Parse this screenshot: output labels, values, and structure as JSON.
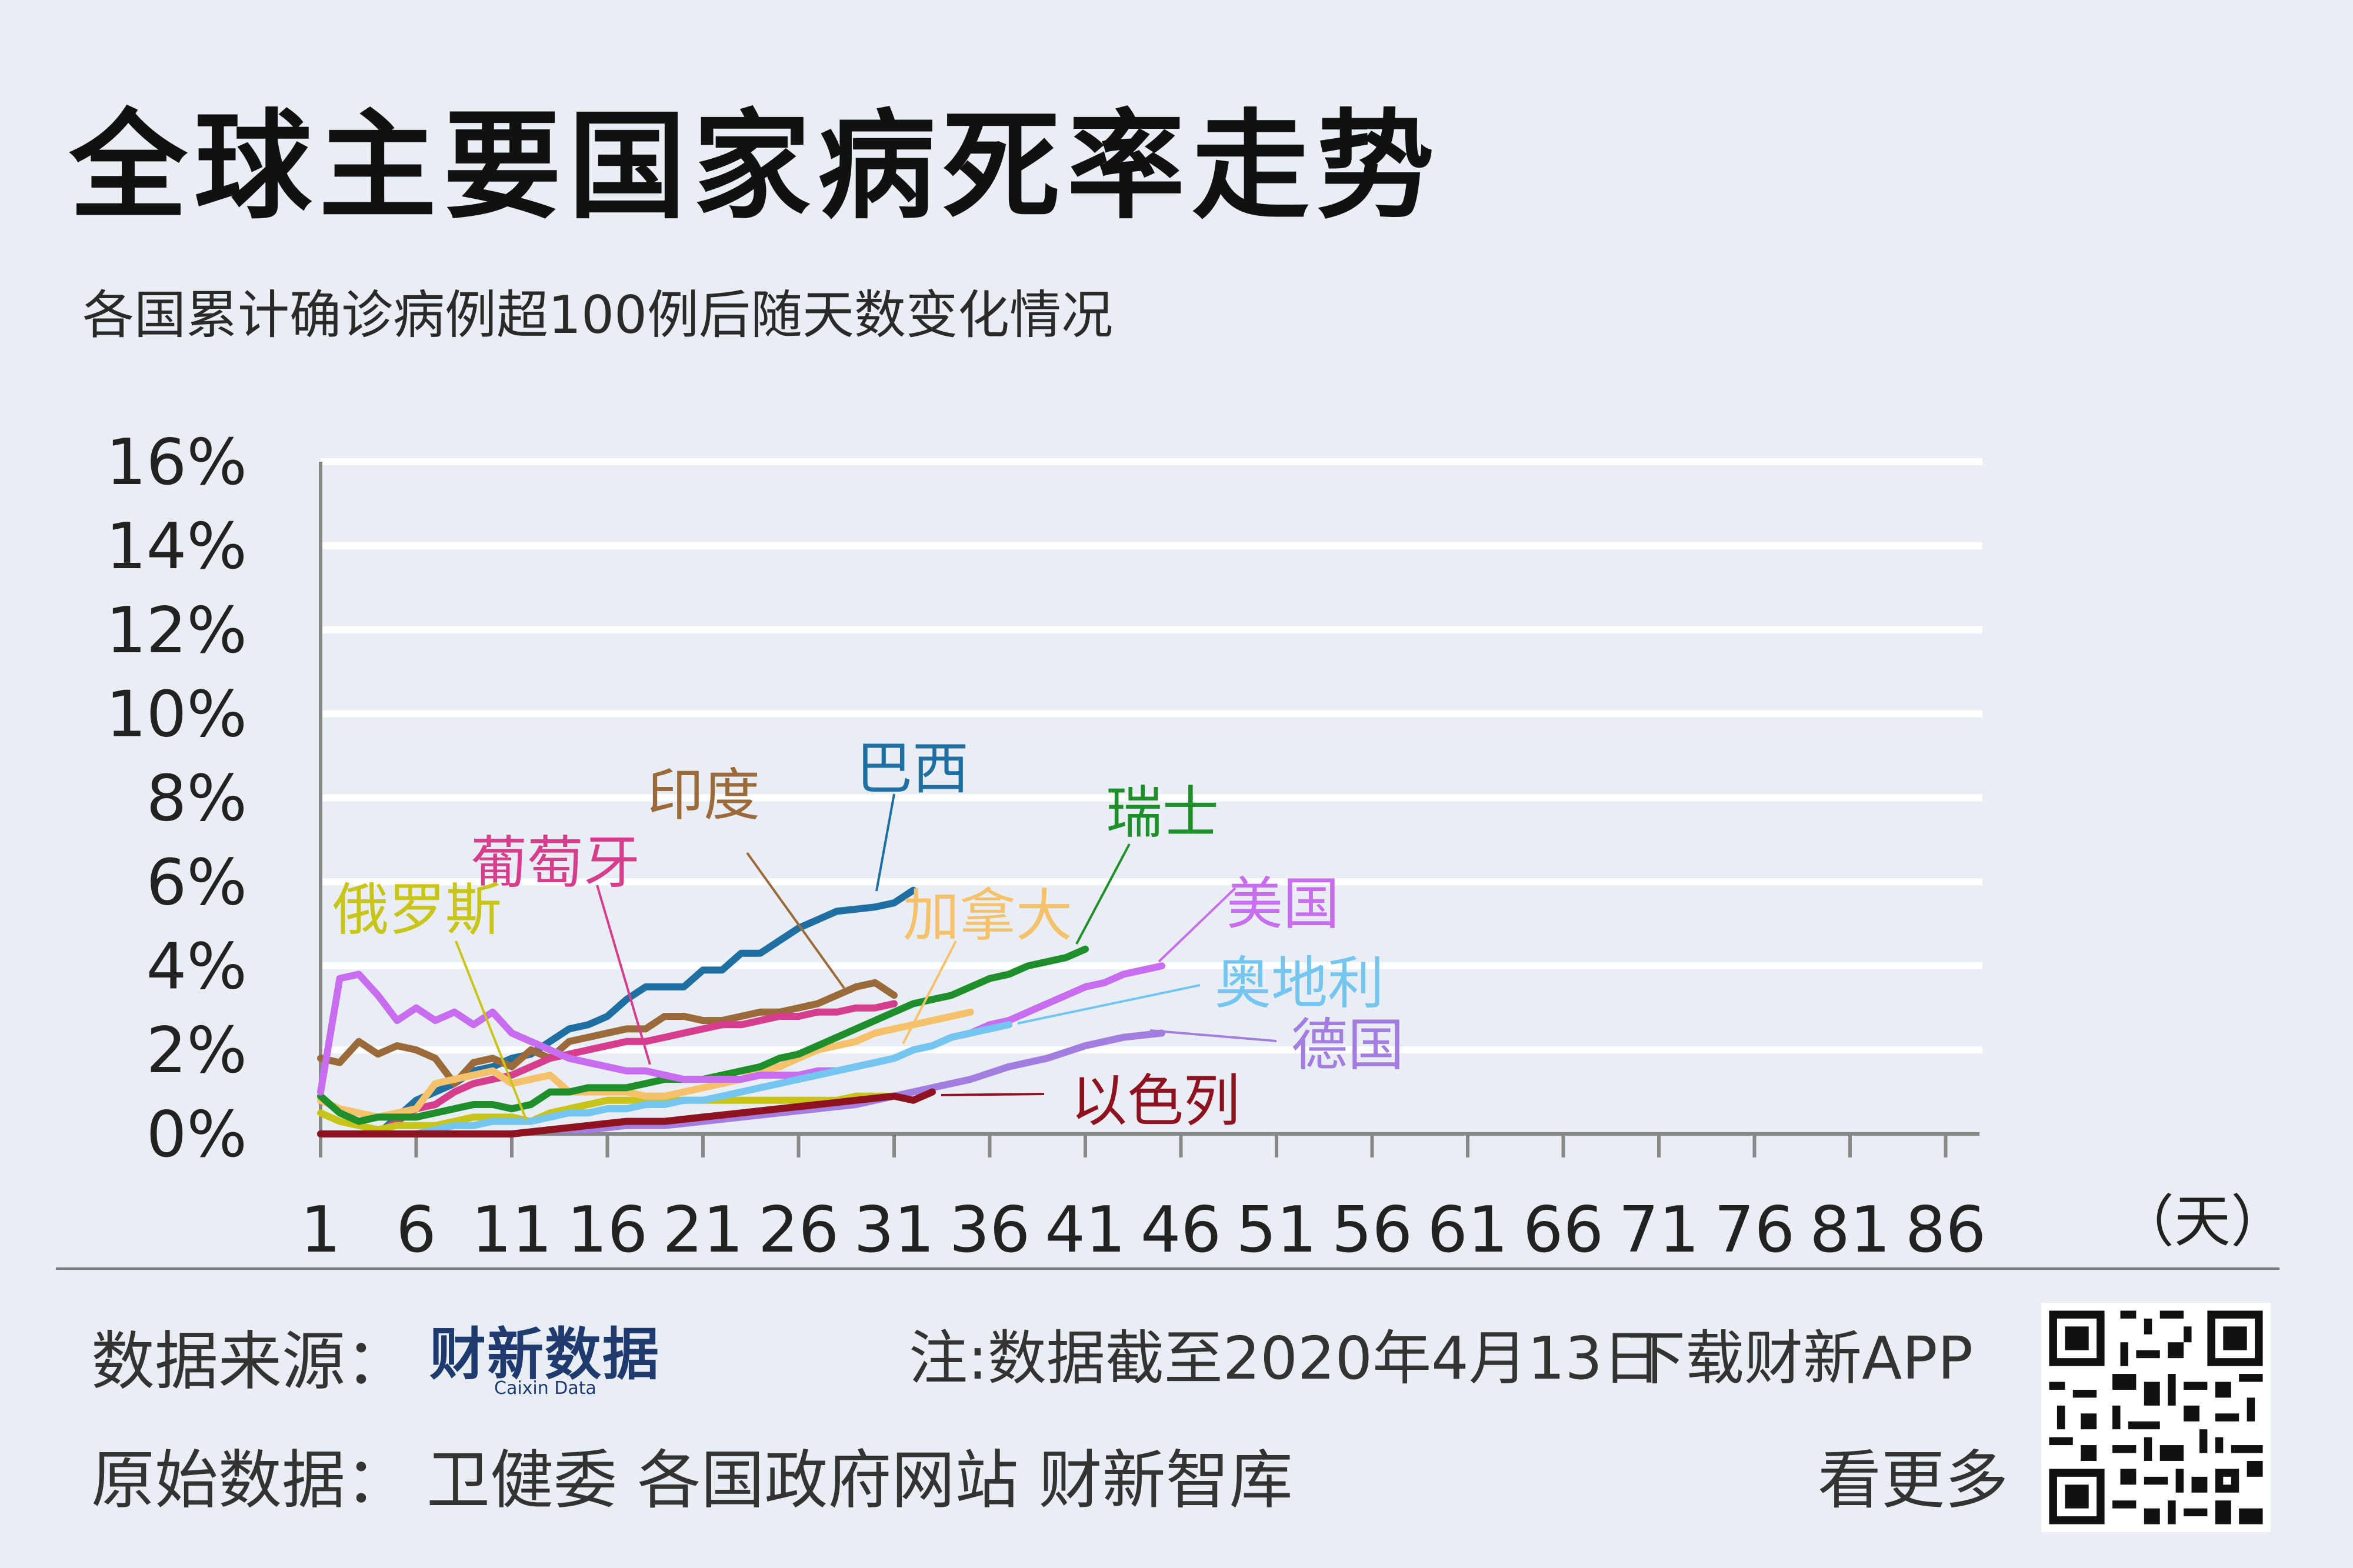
{
  "title": "全球主要国家病死率走势",
  "subtitle": "各国累计确诊病例超100例后随天数变化情况",
  "footer": {
    "source_label": "数据来源：",
    "logo_text": "财新数据",
    "logo_sub": "Caixin Data",
    "note": "注:数据截至2020年4月13日",
    "download": "下载财新APP",
    "more": "看更多",
    "raw_label": "原始数据：",
    "raw_sources": "卫健委  各国政府网站  财新智库"
  },
  "chart_data": {
    "type": "line",
    "title": "全球主要国家病死率走势",
    "subtitle": "各国累计确诊病例超100例后随天数变化情况",
    "xlabel": "（天）",
    "ylabel": "",
    "xlim": [
      1,
      87
    ],
    "ylim": [
      0,
      16
    ],
    "x_ticks": [
      1,
      6,
      11,
      16,
      21,
      26,
      31,
      36,
      41,
      46,
      51,
      56,
      61,
      66,
      71,
      76,
      81,
      86
    ],
    "y_ticks": [
      "0%",
      "2%",
      "4%",
      "6%",
      "8%",
      "10%",
      "12%",
      "14%",
      "16%"
    ],
    "grid": true,
    "series": [
      {
        "name": "巴西",
        "color": "#1f6fa3",
        "x": [
          2,
          3,
          4,
          5,
          6,
          7,
          8,
          9,
          10,
          11,
          12,
          13,
          14,
          15,
          16,
          17,
          18,
          19,
          20,
          21,
          22,
          23,
          24,
          25,
          26,
          27,
          28,
          29,
          30,
          31,
          32
        ],
        "y": [
          0,
          0,
          0,
          0.4,
          0.8,
          1.0,
          1.2,
          1.5,
          1.6,
          1.8,
          1.9,
          2.2,
          2.5,
          2.6,
          2.8,
          3.2,
          3.5,
          3.5,
          3.5,
          3.9,
          3.9,
          4.3,
          4.3,
          4.6,
          4.9,
          5.1,
          5.3,
          5.35,
          5.4,
          5.5,
          5.8
        ]
      },
      {
        "name": "印度",
        "color": "#9b6a3a",
        "x": [
          1,
          2,
          3,
          4,
          5,
          6,
          7,
          8,
          9,
          10,
          11,
          12,
          13,
          14,
          15,
          16,
          17,
          18,
          19,
          20,
          21,
          22,
          23,
          24,
          25,
          26,
          27,
          28,
          29,
          30,
          31
        ],
        "y": [
          1.8,
          1.7,
          2.2,
          1.9,
          2.1,
          2.0,
          1.8,
          1.2,
          1.7,
          1.8,
          1.6,
          2.0,
          1.8,
          2.2,
          2.3,
          2.4,
          2.5,
          2.5,
          2.8,
          2.8,
          2.7,
          2.7,
          2.8,
          2.9,
          2.9,
          3.0,
          3.1,
          3.3,
          3.5,
          3.6,
          3.3
        ]
      },
      {
        "name": "葡萄牙",
        "color": "#d63d8c",
        "x": [
          1,
          2,
          3,
          4,
          5,
          6,
          7,
          8,
          9,
          10,
          11,
          12,
          13,
          14,
          15,
          16,
          17,
          18,
          19,
          20,
          21,
          22,
          23,
          24,
          25,
          26,
          27,
          28,
          29,
          30,
          31
        ],
        "y": [
          0,
          0,
          0,
          0,
          0.3,
          0.6,
          0.7,
          1.0,
          1.2,
          1.3,
          1.4,
          1.6,
          1.8,
          1.9,
          2.0,
          2.1,
          2.2,
          2.2,
          2.3,
          2.4,
          2.5,
          2.6,
          2.6,
          2.7,
          2.8,
          2.8,
          2.9,
          2.9,
          3.0,
          3.0,
          3.1
        ]
      },
      {
        "name": "俄罗斯",
        "color": "#c9c41a",
        "x": [
          1,
          2,
          3,
          4,
          5,
          6,
          7,
          8,
          9,
          10,
          11,
          12,
          13,
          14,
          15,
          16,
          17,
          18,
          19,
          20,
          21,
          22,
          23,
          24,
          25,
          26,
          27,
          28,
          29,
          30,
          31
        ],
        "y": [
          0.5,
          0.3,
          0.2,
          0.1,
          0.2,
          0.2,
          0.2,
          0.3,
          0.4,
          0.4,
          0.4,
          0.3,
          0.5,
          0.6,
          0.7,
          0.8,
          0.8,
          0.8,
          0.8,
          0.8,
          0.8,
          0.8,
          0.8,
          0.8,
          0.8,
          0.8,
          0.8,
          0.8,
          0.9,
          0.9,
          0.9
        ]
      },
      {
        "name": "加拿大",
        "color": "#f5c26b",
        "x": [
          1,
          2,
          3,
          4,
          5,
          6,
          7,
          8,
          9,
          10,
          11,
          12,
          13,
          14,
          15,
          16,
          17,
          18,
          19,
          20,
          21,
          22,
          23,
          24,
          25,
          26,
          27,
          28,
          29,
          30,
          31,
          32,
          33,
          34,
          35
        ],
        "y": [
          0.8,
          0.6,
          0.5,
          0.4,
          0.5,
          0.6,
          1.2,
          1.3,
          1.4,
          1.5,
          1.2,
          1.3,
          1.4,
          1.0,
          1.0,
          1.0,
          1.0,
          0.9,
          0.9,
          1.0,
          1.1,
          1.2,
          1.3,
          1.5,
          1.6,
          1.8,
          2.0,
          2.1,
          2.2,
          2.4,
          2.5,
          2.6,
          2.7,
          2.8,
          2.9
        ]
      },
      {
        "name": "瑞士",
        "color": "#1e8f2a",
        "x": [
          1,
          2,
          3,
          4,
          5,
          6,
          7,
          8,
          9,
          10,
          11,
          12,
          13,
          14,
          15,
          16,
          17,
          18,
          19,
          20,
          21,
          22,
          23,
          24,
          25,
          26,
          27,
          28,
          29,
          30,
          31,
          32,
          33,
          34,
          35,
          36,
          37,
          38,
          39,
          40,
          41
        ],
        "y": [
          0.9,
          0.5,
          0.3,
          0.4,
          0.4,
          0.4,
          0.5,
          0.6,
          0.7,
          0.7,
          0.6,
          0.7,
          1.0,
          1.0,
          1.1,
          1.1,
          1.1,
          1.2,
          1.3,
          1.3,
          1.3,
          1.4,
          1.5,
          1.6,
          1.8,
          1.9,
          2.1,
          2.3,
          2.5,
          2.7,
          2.9,
          3.1,
          3.2,
          3.3,
          3.5,
          3.7,
          3.8,
          4.0,
          4.1,
          4.2,
          4.4
        ]
      },
      {
        "name": "美国",
        "color": "#c86cf0",
        "x": [
          1,
          2,
          3,
          4,
          5,
          6,
          7,
          8,
          9,
          10,
          11,
          12,
          13,
          14,
          15,
          16,
          17,
          18,
          19,
          20,
          21,
          22,
          23,
          24,
          25,
          26,
          27,
          28,
          29,
          30,
          31,
          32,
          33,
          34,
          35,
          36,
          37,
          38,
          39,
          40,
          41,
          42,
          43,
          44,
          45
        ],
        "y": [
          1.0,
          3.7,
          3.8,
          3.3,
          2.7,
          3.0,
          2.7,
          2.9,
          2.6,
          2.9,
          2.4,
          2.2,
          2.0,
          1.8,
          1.7,
          1.6,
          1.5,
          1.5,
          1.4,
          1.3,
          1.3,
          1.3,
          1.3,
          1.4,
          1.4,
          1.4,
          1.5,
          1.5,
          1.6,
          1.7,
          1.8,
          2.0,
          2.1,
          2.3,
          2.4,
          2.6,
          2.7,
          2.9,
          3.1,
          3.3,
          3.5,
          3.6,
          3.8,
          3.9,
          4.0
        ]
      },
      {
        "name": "奥地利",
        "color": "#74c6f0",
        "x": [
          1,
          2,
          3,
          4,
          5,
          6,
          7,
          8,
          9,
          10,
          11,
          12,
          13,
          14,
          15,
          16,
          17,
          18,
          19,
          20,
          21,
          22,
          23,
          24,
          25,
          26,
          27,
          28,
          29,
          30,
          31,
          32,
          33,
          34,
          35,
          36,
          37
        ],
        "y": [
          0,
          0,
          0,
          0,
          0,
          0,
          0.1,
          0.2,
          0.2,
          0.3,
          0.3,
          0.3,
          0.4,
          0.5,
          0.5,
          0.6,
          0.6,
          0.7,
          0.7,
          0.8,
          0.8,
          0.9,
          1.0,
          1.1,
          1.2,
          1.3,
          1.4,
          1.5,
          1.6,
          1.7,
          1.8,
          2.0,
          2.1,
          2.3,
          2.4,
          2.5,
          2.6
        ]
      },
      {
        "name": "德国",
        "color": "#a37de0",
        "x": [
          1,
          3,
          5,
          7,
          9,
          11,
          13,
          15,
          17,
          19,
          21,
          23,
          25,
          27,
          29,
          31,
          33,
          35,
          37,
          39,
          41,
          43,
          45
        ],
        "y": [
          0,
          0,
          0,
          0,
          0,
          0,
          0.1,
          0.1,
          0.2,
          0.2,
          0.3,
          0.4,
          0.5,
          0.6,
          0.7,
          0.9,
          1.1,
          1.3,
          1.6,
          1.8,
          2.1,
          2.3,
          2.4
        ]
      },
      {
        "name": "以色列",
        "color": "#8e1220",
        "x": [
          1,
          3,
          5,
          7,
          9,
          11,
          13,
          15,
          17,
          19,
          21,
          23,
          25,
          27,
          29,
          31,
          32,
          33
        ],
        "y": [
          0,
          0,
          0,
          0,
          0,
          0,
          0.1,
          0.2,
          0.3,
          0.3,
          0.4,
          0.5,
          0.6,
          0.7,
          0.8,
          0.9,
          0.8,
          1.0
        ]
      }
    ],
    "labels": [
      {
        "series": "巴西",
        "text": "巴西"
      },
      {
        "series": "印度",
        "text": "印度"
      },
      {
        "series": "葡萄牙",
        "text": "葡萄牙"
      },
      {
        "series": "俄罗斯",
        "text": "俄罗斯"
      },
      {
        "series": "加拿大",
        "text": "加拿大"
      },
      {
        "series": "瑞士",
        "text": "瑞士"
      },
      {
        "series": "美国",
        "text": "美国"
      },
      {
        "series": "奥地利",
        "text": "奥地利"
      },
      {
        "series": "德国",
        "text": "德国"
      },
      {
        "series": "以色列",
        "text": "以色列"
      }
    ]
  }
}
